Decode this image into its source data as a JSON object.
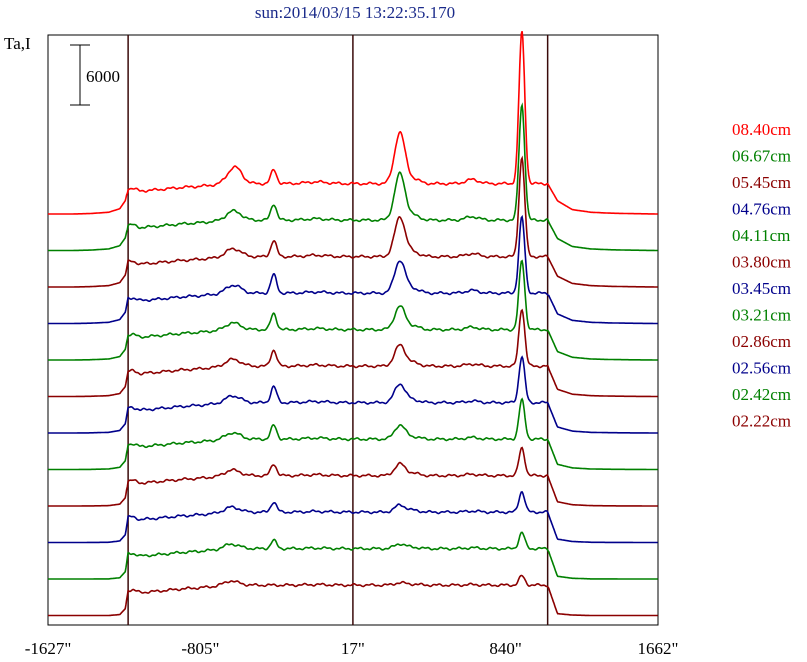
{
  "chart_data": {
    "type": "line",
    "title": "sun:2014/03/15 13:22:35.170",
    "ylabel": "Ta,I",
    "scale_bar_label": "6000",
    "x_tick_labels": [
      "-1627\"",
      "-805\"",
      "17\"",
      "840\"",
      "1662\""
    ],
    "x_ticks": [
      -1627,
      -805,
      17,
      840,
      1662
    ],
    "xlim": [
      -1627,
      1662
    ],
    "vertical_lines_at": [
      -1195,
      17,
      1067
    ],
    "grid": false,
    "legend_placement": "right",
    "profile_shape": {
      "x": [
        -1627,
        -1500,
        -1400,
        -1300,
        -1240,
        -1210,
        -1195,
        -1170,
        -1130,
        -1060,
        -980,
        -900,
        -820,
        -760,
        -720,
        -690,
        -660,
        -640,
        -610,
        -570,
        -500,
        -420,
        -330,
        -250,
        -180,
        -120,
        -80,
        -40,
        17,
        80,
        140,
        180,
        210,
        240,
        280,
        340,
        420,
        500,
        560,
        600,
        650,
        700,
        760,
        800,
        830,
        850,
        870,
        900,
        950,
        1000,
        1067,
        1120,
        1200,
        1300,
        1400,
        1500,
        1662
      ],
      "sharp": [
        0,
        0,
        0,
        0,
        0.02,
        0.15,
        0.55,
        0.56,
        0.5,
        0.52,
        0.55,
        0.58,
        0.6,
        0.62,
        0.64,
        0.68,
        0.72,
        0.72,
        0.68,
        0.66,
        0.66,
        0.66,
        0.66,
        0.66,
        0.66,
        0.66,
        0.66,
        0.66,
        0.66,
        0.66,
        0.66,
        0.66,
        0.66,
        0.66,
        0.66,
        0.66,
        0.66,
        0.66,
        0.66,
        0.66,
        0.66,
        0.66,
        0.66,
        0.66,
        0.66,
        0.66,
        0.66,
        0.66,
        0.66,
        0.66,
        0.66,
        0.04,
        0.01,
        0,
        0,
        0,
        0
      ],
      "smooth": [
        0,
        0,
        0.01,
        0.04,
        0.12,
        0.3,
        0.55,
        0.56,
        0.5,
        0.52,
        0.55,
        0.58,
        0.6,
        0.62,
        0.64,
        0.68,
        0.72,
        0.72,
        0.68,
        0.66,
        0.66,
        0.66,
        0.66,
        0.66,
        0.66,
        0.66,
        0.66,
        0.66,
        0.66,
        0.66,
        0.66,
        0.66,
        0.66,
        0.66,
        0.66,
        0.66,
        0.66,
        0.66,
        0.66,
        0.66,
        0.66,
        0.66,
        0.66,
        0.66,
        0.66,
        0.66,
        0.66,
        0.66,
        0.66,
        0.66,
        0.66,
        0.3,
        0.1,
        0.04,
        0.02,
        0.01,
        0
      ],
      "bumps": [
        {
          "x": -615,
          "w": 50,
          "h": 0.55
        },
        {
          "x": -410,
          "w": 22,
          "h": 1.0
        },
        {
          "x": -180,
          "w": 80,
          "h": 0.25
        },
        {
          "x": 270,
          "w": 40,
          "h": 1.0
        },
        {
          "x": 340,
          "w": 50,
          "h": 0.5
        },
        {
          "x": 660,
          "w": 50,
          "h": 0.3
        },
        {
          "x": 928,
          "w": 22,
          "h": 1.0
        }
      ]
    },
    "series": [
      {
        "name": "08.40cm",
        "color": "#ff0000",
        "sharpness": 0.05,
        "bump_amps": [
          0.6,
          0.3,
          0.15,
          1.1,
          0.2,
          0.3,
          3.3
        ]
      },
      {
        "name": "06.67cm",
        "color": "#008000",
        "sharpness": 0.15,
        "bump_amps": [
          0.3,
          0.35,
          0.12,
          1.0,
          0.2,
          0.25,
          2.5
        ]
      },
      {
        "name": "05.45cm",
        "color": "#8b0000",
        "sharpness": 0.25,
        "bump_amps": [
          0.25,
          0.35,
          0.12,
          0.85,
          0.2,
          0.22,
          2.15
        ]
      },
      {
        "name": "04.76cm",
        "color": "#00008b",
        "sharpness": 0.35,
        "bump_amps": [
          0.25,
          0.4,
          0.1,
          0.7,
          0.2,
          0.2,
          1.65
        ]
      },
      {
        "name": "04.11cm",
        "color": "#008000",
        "sharpness": 0.45,
        "bump_amps": [
          0.2,
          0.35,
          0.1,
          0.5,
          0.15,
          0.18,
          1.5
        ]
      },
      {
        "name": "03.80cm",
        "color": "#8b0000",
        "sharpness": 0.55,
        "bump_amps": [
          0.2,
          0.35,
          0.1,
          0.45,
          0.15,
          0.15,
          1.25
        ]
      },
      {
        "name": "03.45cm",
        "color": "#00008b",
        "sharpness": 0.65,
        "bump_amps": [
          0.2,
          0.35,
          0.1,
          0.4,
          0.12,
          0.12,
          1.0
        ]
      },
      {
        "name": "03.21cm",
        "color": "#008000",
        "sharpness": 0.72,
        "bump_amps": [
          0.18,
          0.3,
          0.1,
          0.3,
          0.1,
          0.12,
          0.85
        ]
      },
      {
        "name": "02.86cm",
        "color": "#8b0000",
        "sharpness": 0.8,
        "bump_amps": [
          0.15,
          0.25,
          0.08,
          0.25,
          0.1,
          0.1,
          0.6
        ]
      },
      {
        "name": "02.56cm",
        "color": "#00008b",
        "sharpness": 0.87,
        "bump_amps": [
          0.12,
          0.22,
          0.06,
          0.15,
          0.08,
          0.08,
          0.45
        ]
      },
      {
        "name": "02.42cm",
        "color": "#008000",
        "sharpness": 0.93,
        "bump_amps": [
          0.1,
          0.18,
          0.05,
          0.1,
          0.06,
          0.06,
          0.35
        ]
      },
      {
        "name": "02.22cm",
        "color": "#8b0000",
        "sharpness": 1.0,
        "bump_amps": [
          0.08,
          0.0,
          0.05,
          0.05,
          0.04,
          0.04,
          0.2
        ]
      }
    ]
  }
}
